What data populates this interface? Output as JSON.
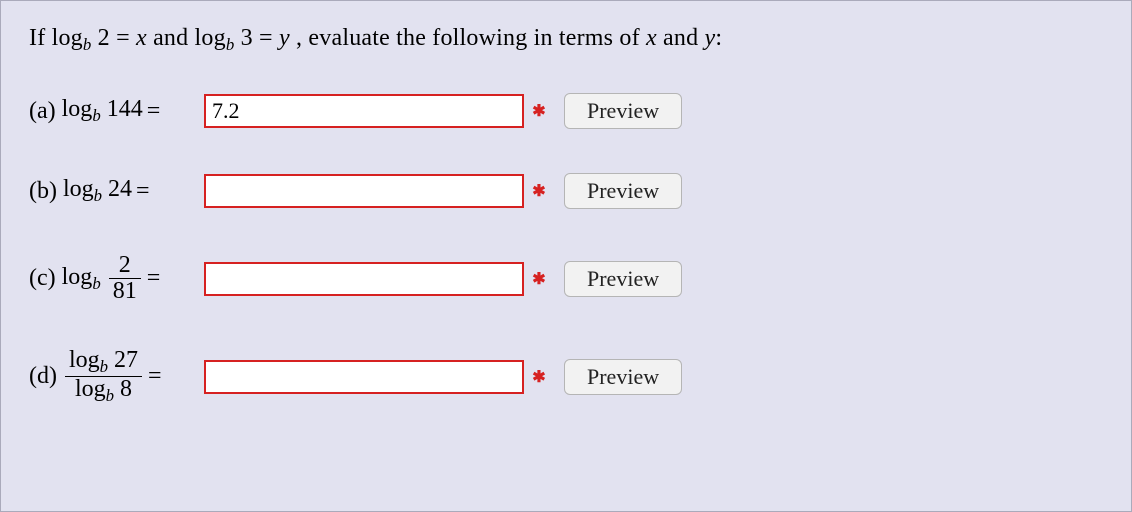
{
  "prompt": {
    "if_text": "If",
    "log_prefix": "log",
    "sub_b": "b",
    "two": " 2 = ",
    "x": "x",
    "and_text": " and ",
    "three": " 3 = ",
    "y": "y",
    "tail": ", evaluate the following in terms of ",
    "x2": "x",
    "and2": " and ",
    "y2": "y",
    "colon": ":"
  },
  "parts": {
    "a": {
      "letter": "(a)",
      "arg": " 144",
      "value": "7.2"
    },
    "b": {
      "letter": "(b)",
      "arg": " 24",
      "value": ""
    },
    "c": {
      "letter": "(c)",
      "num": "2",
      "den": "81",
      "value": ""
    },
    "d": {
      "letter": "(d)",
      "num_arg": " 27",
      "den_arg": " 8",
      "value": ""
    }
  },
  "common": {
    "equals": " = ",
    "log": "log",
    "sub_b": "b",
    "preview": "Preview",
    "mark": "✱"
  },
  "style": {
    "input_border": "#d62121",
    "bg": "#e2e2f0"
  }
}
